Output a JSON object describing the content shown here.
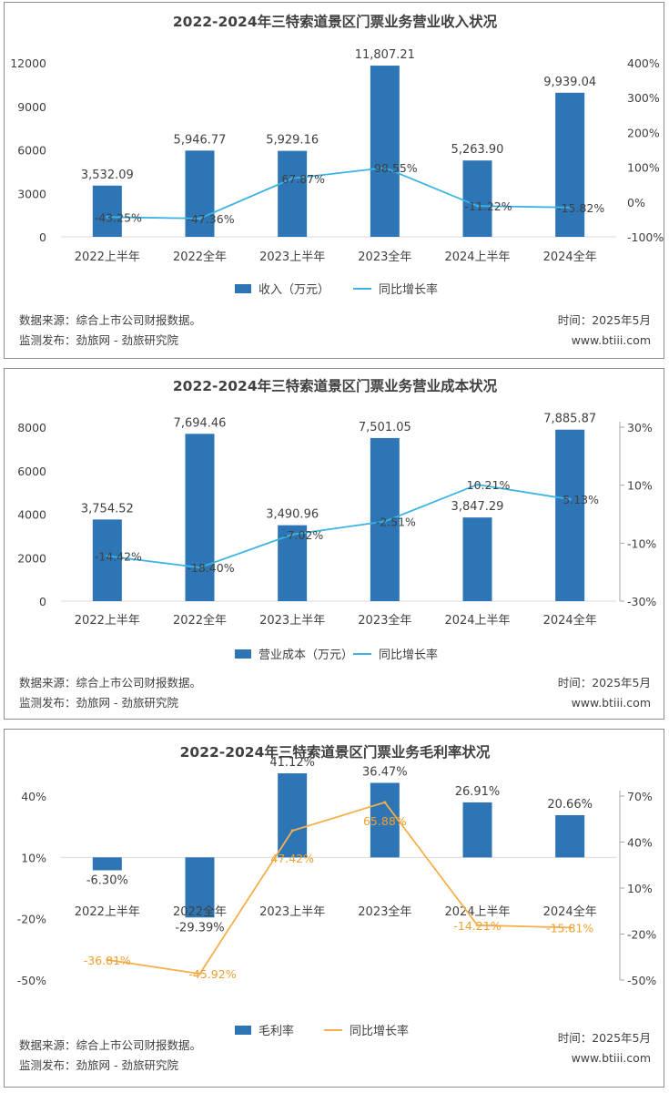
{
  "colors": {
    "bar": "#2e75b6",
    "line_blue": "#3db3e3",
    "line_orange": "#f5b04d",
    "label_orange": "#f0a030"
  },
  "panels": [
    {
      "footer": {
        "source": "数据来源：综合上市公司财报数据。",
        "publisher": "监测发布：劲旅网 - 劲旅研究院",
        "time": "时间：2025年5月",
        "site": "www.btiii.com"
      }
    },
    {
      "footer": {
        "source": "数据来源：综合上市公司财报数据。",
        "publisher": "监测发布：劲旅网 - 劲旅研究院",
        "time": "时间：2025年5月",
        "site": "www.btiii.com"
      }
    },
    {
      "footer": {
        "source": "数据来源：综合上市公司财报数据。",
        "publisher": "监测发布：劲旅网 - 劲旅研究院",
        "time": "时间：2025年5月",
        "site": "www.btiii.com"
      }
    }
  ],
  "chart_data": [
    {
      "type": "bar",
      "title": "2022-2024年三特索道景区门票业务营业收入状况",
      "categories": [
        "2022上半年",
        "2022全年",
        "2023上半年",
        "2023全年",
        "2024上半年",
        "2024全年"
      ],
      "series": [
        {
          "name": "收入（万元）",
          "type": "bar",
          "axis": "left",
          "values": [
            3532.09,
            5946.77,
            5929.16,
            11807.21,
            5263.9,
            9939.04
          ],
          "labels": [
            "3,532.09",
            "5,946.77",
            "5,929.16",
            "11,807.21",
            "5,263.90",
            "9,939.04"
          ]
        },
        {
          "name": "同比增长率",
          "type": "line",
          "axis": "right",
          "values": [
            -43.25,
            -47.36,
            67.87,
            98.55,
            -11.22,
            -15.82
          ],
          "labels": [
            "-43.25%",
            "-47.36%",
            "67.87%",
            "98.55%",
            "-11.22%",
            "-15.82%"
          ]
        }
      ],
      "y_left": {
        "min": 0,
        "max": 12000,
        "ticks": [
          0,
          3000,
          6000,
          9000,
          12000
        ],
        "tick_labels": [
          "0",
          "3000",
          "6000",
          "9000",
          "12000"
        ]
      },
      "y_right": {
        "min": -100,
        "max": 400,
        "ticks": [
          -100,
          0,
          100,
          200,
          300,
          400
        ],
        "tick_labels": [
          "-100%",
          "0%",
          "100%",
          "200%",
          "300%",
          "400%"
        ]
      },
      "legend": [
        "收入（万元）",
        "同比增长率"
      ],
      "legend_position": "bottom"
    },
    {
      "type": "bar",
      "title": "2022-2024年三特索道景区门票业务营业成本状况",
      "categories": [
        "2022上半年",
        "2022全年",
        "2023上半年",
        "2023全年",
        "2024上半年",
        "2024全年"
      ],
      "series": [
        {
          "name": "营业成本（万元）",
          "type": "bar",
          "axis": "left",
          "values": [
            3754.52,
            7694.46,
            3490.96,
            7501.05,
            3847.29,
            7885.87
          ],
          "labels": [
            "3,754.52",
            "7,694.46",
            "3,490.96",
            "7,501.05",
            "3,847.29",
            "7,885.87"
          ]
        },
        {
          "name": "同比增长率",
          "type": "line",
          "axis": "right",
          "values": [
            -14.42,
            -18.4,
            -7.02,
            -2.51,
            10.21,
            5.13
          ],
          "labels": [
            "-14.42%",
            "-18.40%",
            "-7.02%",
            "-2.51%",
            "10.21%",
            "5.13%"
          ]
        }
      ],
      "y_left": {
        "min": 0,
        "max": 8000,
        "ticks": [
          0,
          2000,
          4000,
          6000,
          8000
        ],
        "tick_labels": [
          "0",
          "2000",
          "4000",
          "6000",
          "8000"
        ]
      },
      "y_right": {
        "min": -30,
        "max": 30,
        "ticks": [
          -30,
          -10,
          10,
          30
        ],
        "tick_labels": [
          "-30%",
          "-10%",
          "10%",
          "30%"
        ]
      },
      "legend": [
        "营业成本（万元）",
        "同比增长率"
      ],
      "legend_position": "bottom"
    },
    {
      "type": "bar",
      "title": "2022-2024年三特索道景区门票业务毛利率状况",
      "categories": [
        "2022上半年",
        "2022全年",
        "2023上半年",
        "2023全年",
        "2024上半年",
        "2024全年"
      ],
      "series": [
        {
          "name": "毛利率",
          "type": "bar",
          "axis": "left",
          "values": [
            -6.3,
            -29.39,
            41.12,
            36.47,
            26.91,
            20.66
          ],
          "labels": [
            "-6.30%",
            "-29.39%",
            "41.12%",
            "36.47%",
            "26.91%",
            "20.66%"
          ]
        },
        {
          "name": "同比增长率",
          "type": "line",
          "axis": "right",
          "values": [
            -36.81,
            -45.92,
            47.42,
            65.88,
            -14.21,
            -15.81
          ],
          "labels": [
            "-36.81%",
            "-45.92%",
            "47.42%",
            "65.88%",
            "-14.21%",
            "-15.81%"
          ]
        }
      ],
      "y_left": {
        "min": -50,
        "max": 40,
        "ticks": [
          -50,
          -20,
          10,
          40
        ],
        "tick_labels": [
          "-50%",
          "-20%",
          "10%",
          "40%"
        ]
      },
      "y_right": {
        "min": -50,
        "max": 70,
        "ticks": [
          -50,
          -20,
          10,
          40,
          70
        ],
        "tick_labels": [
          "-50%",
          "-20%",
          "10%",
          "40%",
          "70%"
        ]
      },
      "legend": [
        "毛利率",
        "同比增长率"
      ],
      "legend_position": "bottom"
    }
  ]
}
